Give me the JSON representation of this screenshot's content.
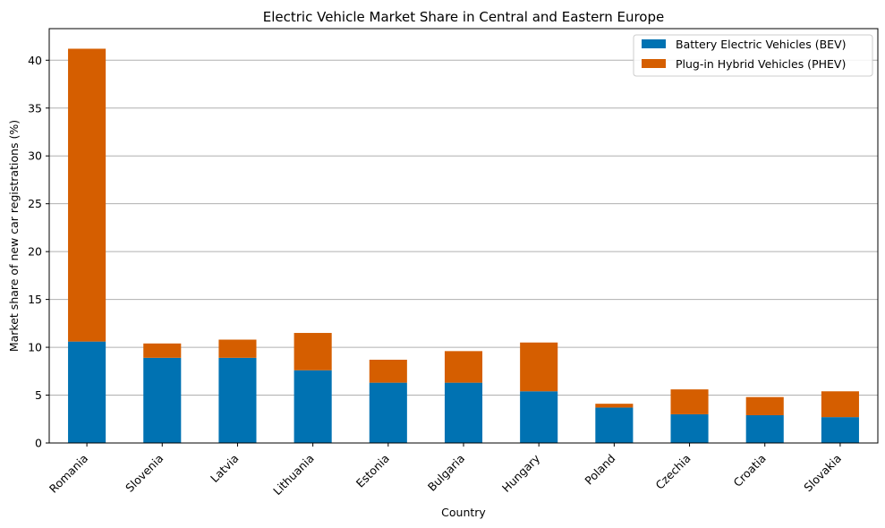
{
  "chart_data": {
    "type": "bar",
    "stacked": true,
    "title": "Electric Vehicle Market Share in Central and Eastern Europe",
    "xlabel": "Country",
    "ylabel": "Market share of new car registrations (%)",
    "categories": [
      "Romania",
      "Slovenia",
      "Latvia",
      "Lithuania",
      "Estonia",
      "Bulgaria",
      "Hungary",
      "Poland",
      "Czechia",
      "Croatia",
      "Slovakia"
    ],
    "series": [
      {
        "name": "Battery Electric Vehicles (BEV)",
        "color": "#0072B2",
        "values": [
          10.6,
          8.9,
          8.9,
          7.6,
          6.3,
          6.3,
          5.4,
          3.7,
          3.0,
          2.9,
          2.7
        ]
      },
      {
        "name": "Plug-in Hybrid Vehicles (PHEV)",
        "color": "#D55E00",
        "values": [
          30.6,
          1.5,
          1.9,
          3.9,
          2.4,
          3.3,
          5.1,
          0.4,
          2.6,
          1.9,
          2.7
        ]
      }
    ],
    "ylim": [
      0,
      43.3
    ],
    "yticks": [
      0,
      5,
      10,
      15,
      20,
      25,
      30,
      35,
      40
    ],
    "grid": "y",
    "legend_position": "top-right"
  }
}
